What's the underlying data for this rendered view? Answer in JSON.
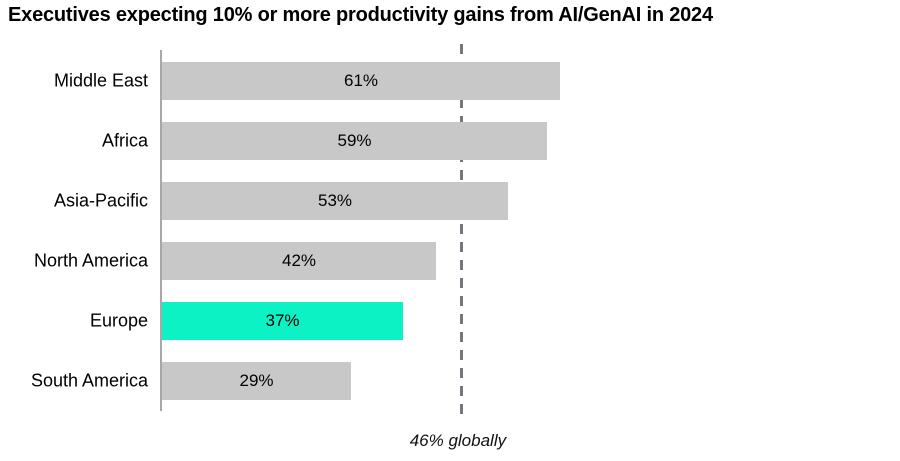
{
  "title": "Executives expecting 10% or more productivity gains from AI/GenAI in 2024",
  "chart_data": {
    "type": "bar",
    "orientation": "horizontal",
    "title": "Executives expecting 10% or more productivity gains from AI/GenAI in 2024",
    "categories": [
      "Middle East",
      "Africa",
      "Asia-Pacific",
      "North America",
      "Europe",
      "South America"
    ],
    "values": [
      61,
      59,
      53,
      42,
      37,
      29
    ],
    "value_labels": [
      "61%",
      "59%",
      "53%",
      "42%",
      "37%",
      "29%"
    ],
    "highlight_index": 4,
    "highlight_category": "Europe",
    "reference_line": {
      "value": 46,
      "label": "46% globally"
    },
    "xlim": [
      0,
      100
    ],
    "grid": false,
    "legend": false,
    "colors": {
      "bar": "#c8c8c8",
      "highlight": "#0cf2c4",
      "axis": "#a8a8a8",
      "reference_line": "#76767e",
      "text": "#000000"
    }
  }
}
